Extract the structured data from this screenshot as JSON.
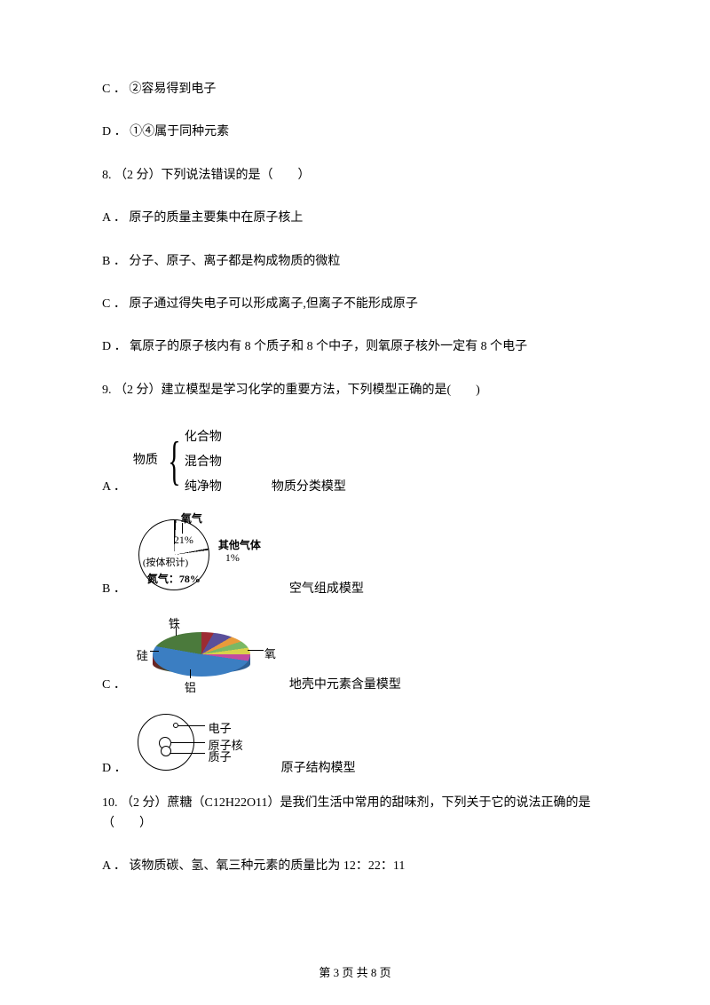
{
  "q7": {
    "optC": "C ． ②容易得到电子",
    "optD": "D ． ①④属于同种元素"
  },
  "q8": {
    "stem": "8. （2 分）下列说法错误的是（　　）",
    "A": "A ． 原子的质量主要集中在原子核上",
    "B": "B ． 分子、原子、离子都是构成物质的微粒",
    "C": "C ． 原子通过得失电子可以形成离子,但离子不能形成原子",
    "D": "D ． 氧原子的原子核内有 8 个质子和 8 个中子，则氧原子核外一定有 8 个电子"
  },
  "q9": {
    "stem": "9. （2 分）建立模型是学习化学的重要方法，下列模型正确的是(　　)",
    "A": {
      "label": "A ．",
      "caption": "物质分类模型",
      "root": "物质",
      "items": [
        "化合物",
        "混合物",
        "纯净物"
      ]
    },
    "B": {
      "label": "B ．",
      "caption": "空气组成模型",
      "o2_label": "氧气",
      "o2_pct": "21%",
      "other_label": "其他气体",
      "other_pct": "1%",
      "vol_label": "(按体积计)",
      "n2_label": "氮气：78%"
    },
    "C": {
      "label": "C ．",
      "caption": "地壳中元素含量模型",
      "labels": {
        "fe": "铁",
        "si": "硅",
        "o": "氧",
        "al": "铝"
      },
      "colors": {
        "o": "#3b7ec2",
        "o_d": "#2e5f94",
        "si": "#9d2c33",
        "si_d": "#6f1f24",
        "al": "#4b7a3c",
        "al_d": "#35562a",
        "fe": "#5a4f9a",
        "ca": "#7ab864",
        "mg": "#e89b3a",
        "na": "#d9d14a",
        "k": "#c24aa0"
      }
    },
    "D": {
      "label": "D ．",
      "caption": "原子结构模型",
      "t1": "电子",
      "t2": "原子核",
      "t3": "质子"
    }
  },
  "q10": {
    "stem": "10. （2 分）蔗糖（C12H22O11）是我们生活中常用的甜味剂，下列关于它的说法正确的是（　　）",
    "A": "A ． 该物质碳、氢、氧三种元素的质量比为 12：22：11"
  },
  "footer": "第 3 页 共 8 页"
}
